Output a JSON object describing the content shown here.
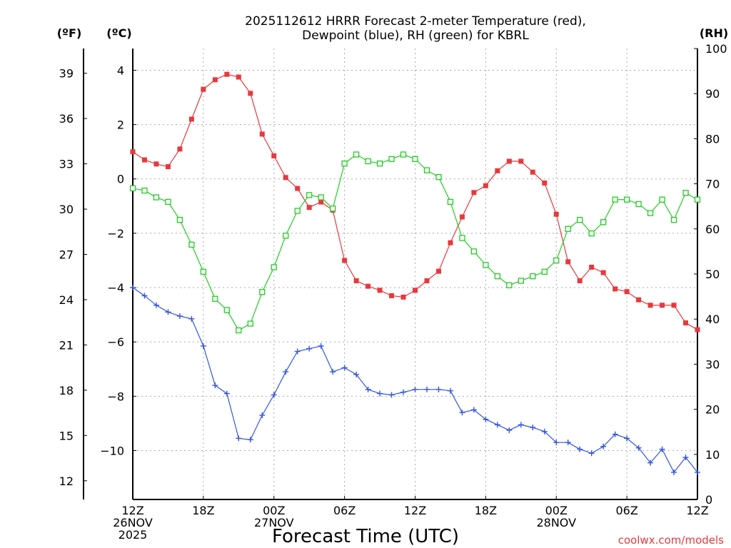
{
  "chart_data": {
    "type": "line",
    "title_line1": "2025112612 HRRR Forecast 2-meter Temperature (red),",
    "title_line2": "Dewpoint (blue), RH (green) for KBRL",
    "xlabel": "Forecast Time (UTC)",
    "credit": "coolwx.com/models",
    "unit_f": "(ºF)",
    "unit_c": "(ºC)",
    "unit_rh": "(RH)",
    "grid": true,
    "x_range_hours": [
      0,
      48
    ],
    "x_ticks": [
      {
        "hour": 0,
        "lines": [
          "12Z",
          "26NOV",
          "2025"
        ]
      },
      {
        "hour": 6,
        "lines": [
          "18Z"
        ]
      },
      {
        "hour": 12,
        "lines": [
          "00Z",
          "27NOV"
        ]
      },
      {
        "hour": 18,
        "lines": [
          "06Z"
        ]
      },
      {
        "hour": 24,
        "lines": [
          "12Z"
        ]
      },
      {
        "hour": 30,
        "lines": [
          "18Z"
        ]
      },
      {
        "hour": 36,
        "lines": [
          "00Z",
          "28NOV"
        ]
      },
      {
        "hour": 42,
        "lines": [
          "06Z"
        ]
      },
      {
        "hour": 48,
        "lines": [
          "12Z"
        ]
      }
    ],
    "y_left_c_range": [
      -11.8,
      4.8
    ],
    "y_left_c_ticks": [
      "4",
      "2",
      "0",
      "−2",
      "−4",
      "−6",
      "−8",
      "−10"
    ],
    "y_left_c_tick_values": [
      4,
      2,
      0,
      -2,
      -4,
      -6,
      -8,
      -10
    ],
    "y_left_f_ticks": [
      "39",
      "36",
      "33",
      "30",
      "27",
      "24",
      "21",
      "18",
      "15",
      "12"
    ],
    "y_left_f_tick_values": [
      39,
      36,
      33,
      30,
      27,
      24,
      21,
      18,
      15,
      12
    ],
    "y_right_rh_range": [
      0,
      100
    ],
    "y_right_rh_ticks": [
      "100",
      "90",
      "80",
      "70",
      "60",
      "50",
      "40",
      "30",
      "20",
      "10",
      "0"
    ],
    "y_right_rh_tick_values": [
      100,
      90,
      80,
      70,
      60,
      50,
      40,
      30,
      20,
      10,
      0
    ],
    "hours": [
      0,
      1,
      2,
      3,
      4,
      5,
      6,
      7,
      8,
      9,
      10,
      11,
      12,
      13,
      14,
      15,
      16,
      17,
      18,
      19,
      20,
      21,
      22,
      23,
      24,
      25,
      26,
      27,
      28,
      29,
      30,
      31,
      32,
      33,
      34,
      35,
      36,
      37,
      38,
      39,
      40,
      41,
      42,
      43,
      44,
      45,
      46,
      47,
      48
    ],
    "series": [
      {
        "name": "Temperature (°C)",
        "color": "#e8383c",
        "marker": "filled-square",
        "axis": "celsius",
        "values": [
          1.0,
          0.7,
          0.55,
          0.45,
          1.1,
          2.2,
          3.3,
          3.65,
          3.85,
          3.75,
          3.15,
          1.65,
          0.85,
          0.05,
          -0.35,
          -1.05,
          -0.85,
          -1.15,
          -3.0,
          -3.75,
          -3.95,
          -4.1,
          -4.3,
          -4.35,
          -4.1,
          -3.75,
          -3.4,
          -2.35,
          -1.4,
          -0.5,
          -0.25,
          0.3,
          0.65,
          0.65,
          0.25,
          -0.15,
          -1.3,
          -3.05,
          -3.75,
          -3.25,
          -3.45,
          -4.05,
          -4.15,
          -4.45,
          -4.65,
          -4.65,
          -4.65,
          -5.3,
          -5.55
        ]
      },
      {
        "name": "Dewpoint (°C)",
        "color": "#3355e0",
        "marker": "plus",
        "axis": "celsius",
        "values": [
          -4.0,
          -4.3,
          -4.65,
          -4.9,
          -5.05,
          -5.15,
          -6.15,
          -7.6,
          -7.9,
          -9.55,
          -9.6,
          -8.7,
          -7.95,
          -7.1,
          -6.35,
          -6.25,
          -6.15,
          -7.1,
          -6.95,
          -7.2,
          -7.75,
          -7.9,
          -7.95,
          -7.85,
          -7.75,
          -7.75,
          -7.75,
          -7.8,
          -8.6,
          -8.5,
          -8.85,
          -9.05,
          -9.25,
          -9.05,
          -9.15,
          -9.3,
          -9.7,
          -9.7,
          -9.95,
          -10.1,
          -9.85,
          -9.4,
          -9.55,
          -9.9,
          -10.45,
          -9.95,
          -10.8,
          -10.25,
          -10.8
        ]
      },
      {
        "name": "Relative Humidity (%)",
        "color": "#22cc22",
        "marker": "open-square",
        "axis": "rh",
        "values": [
          69,
          68.5,
          67,
          66,
          62,
          56.5,
          50.5,
          44.5,
          42,
          37.5,
          39,
          46,
          51.5,
          58.5,
          64,
          67.5,
          67,
          64.5,
          74.5,
          76.5,
          75,
          74.5,
          75.5,
          76.5,
          75.5,
          73,
          71.5,
          66,
          58,
          55,
          52,
          49.5,
          47.5,
          48.5,
          49.5,
          50.5,
          53,
          60,
          62,
          59,
          61.5,
          66.5,
          66.5,
          65.5,
          63.5,
          66.5,
          62,
          68,
          66.5
        ]
      }
    ]
  }
}
